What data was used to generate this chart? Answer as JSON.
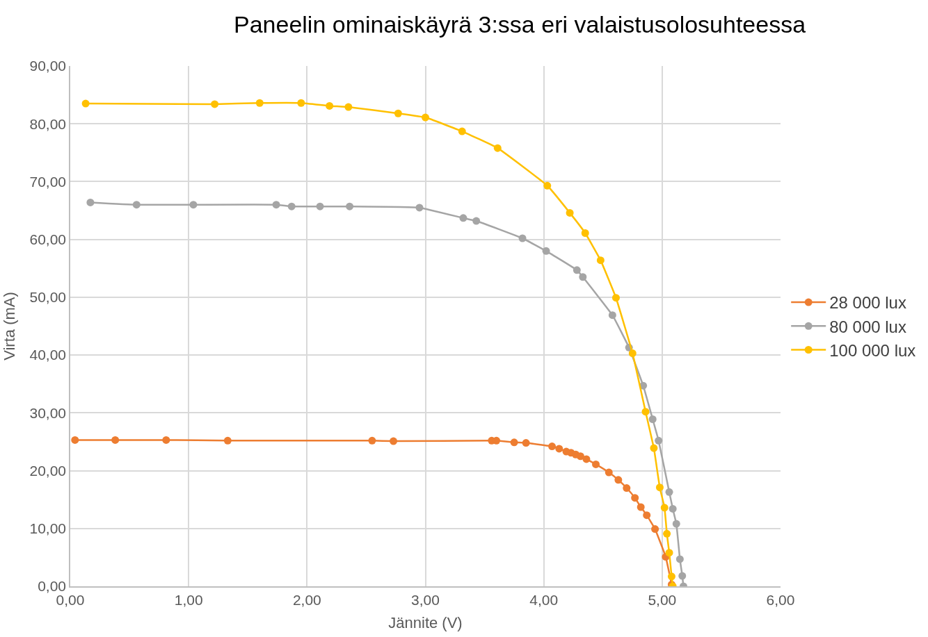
{
  "chart_data": {
    "type": "line",
    "title": "Paneelin ominaiskäyrä 3:ssa eri valaistusolosuhteessa",
    "xlabel": "Jännite (V)",
    "ylabel": "Virta (mA)",
    "xlim": [
      0,
      6
    ],
    "xticks": [
      {
        "value": 0,
        "label": "0,00"
      },
      {
        "value": 1,
        "label": "1,00"
      },
      {
        "value": 2,
        "label": "2,00"
      },
      {
        "value": 3,
        "label": "3,00"
      },
      {
        "value": 4,
        "label": "4,00"
      },
      {
        "value": 5,
        "label": "5,00"
      },
      {
        "value": 6,
        "label": "6,00"
      }
    ],
    "ylim": [
      0,
      90
    ],
    "yticks": [
      {
        "value": 0,
        "label": "0,00"
      },
      {
        "value": 10,
        "label": "10,00"
      },
      {
        "value": 20,
        "label": "20,00"
      },
      {
        "value": 30,
        "label": "30,00"
      },
      {
        "value": 40,
        "label": "40,00"
      },
      {
        "value": 50,
        "label": "50,00"
      },
      {
        "value": 60,
        "label": "60,00"
      },
      {
        "value": 70,
        "label": "70,00"
      },
      {
        "value": 80,
        "label": "80,00"
      },
      {
        "value": 90,
        "label": "90,00"
      }
    ],
    "grid": true,
    "legend": "right",
    "marker": "circle",
    "line_style": "solid",
    "series": [
      {
        "name": "28 000 lux",
        "color": "#ed7d31",
        "x": [
          0.04,
          0.38,
          0.81,
          1.33,
          2.55,
          2.73,
          3.56,
          3.6,
          3.75,
          3.85,
          4.07,
          4.13,
          4.19,
          4.23,
          4.27,
          4.31,
          4.36,
          4.44,
          4.55,
          4.63,
          4.7,
          4.77,
          4.82,
          4.87,
          4.94,
          5.03,
          5.08
        ],
        "values": [
          25.3,
          25.3,
          25.3,
          25.2,
          25.2,
          25.1,
          25.2,
          25.2,
          24.9,
          24.8,
          24.2,
          23.8,
          23.3,
          23.1,
          22.8,
          22.5,
          22.0,
          21.1,
          19.7,
          18.4,
          17.0,
          15.3,
          13.7,
          12.3,
          9.9,
          5.1,
          0.3
        ]
      },
      {
        "name": "80 000 lux",
        "color": "#a5a5a5",
        "x": [
          0.17,
          0.56,
          1.04,
          1.74,
          1.87,
          2.11,
          2.36,
          2.95,
          3.32,
          3.43,
          3.82,
          4.02,
          4.28,
          4.33,
          4.58,
          4.72,
          4.84,
          4.92,
          4.97,
          5.06,
          5.09,
          5.12,
          5.15,
          5.17,
          5.18
        ],
        "values": [
          66.4,
          66.0,
          66.0,
          66.0,
          65.7,
          65.7,
          65.7,
          65.5,
          63.7,
          63.2,
          60.2,
          58.0,
          54.7,
          53.5,
          46.9,
          41.3,
          34.7,
          28.9,
          25.2,
          16.3,
          13.4,
          10.8,
          4.7,
          1.8,
          0
        ]
      },
      {
        "name": "100 000 lux",
        "color": "#ffc000",
        "x": [
          0.13,
          1.22,
          1.6,
          1.95,
          2.19,
          2.35,
          2.77,
          3.0,
          3.31,
          3.61,
          4.03,
          4.22,
          4.35,
          4.48,
          4.61,
          4.75,
          4.86,
          4.93,
          4.98,
          5.02,
          5.04,
          5.06,
          5.08,
          5.09
        ],
        "values": [
          83.5,
          83.4,
          83.6,
          83.6,
          83.1,
          82.9,
          81.8,
          81.1,
          78.7,
          75.8,
          69.3,
          64.6,
          61.1,
          56.4,
          49.9,
          40.3,
          30.2,
          23.9,
          17.1,
          13.6,
          9.1,
          5.8,
          1.7,
          0
        ]
      }
    ]
  }
}
